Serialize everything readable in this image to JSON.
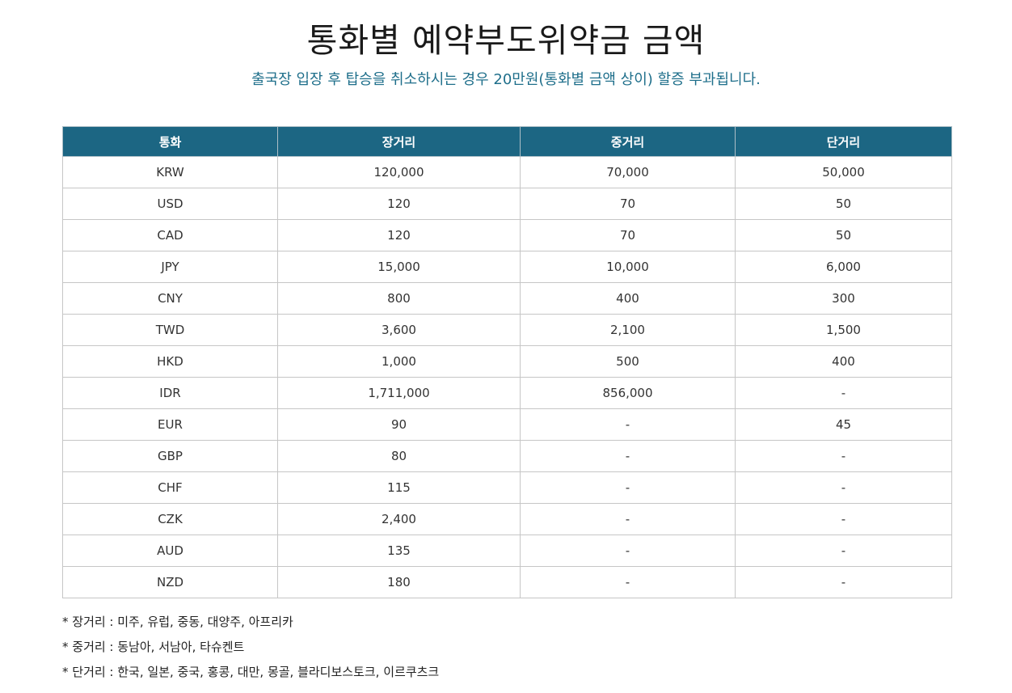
{
  "header": {
    "title": "통화별 예약부도위약금 금액",
    "subtitle": "출국장 입장 후 탑승을 취소하시는 경우 20만원(통화별 금액 상이) 할증 부과됩니다."
  },
  "table": {
    "columns": [
      "통화",
      "장거리",
      "중거리",
      "단거리"
    ],
    "rows": [
      [
        "KRW",
        "120,000",
        "70,000",
        "50,000"
      ],
      [
        "USD",
        "120",
        "70",
        "50"
      ],
      [
        "CAD",
        "120",
        "70",
        "50"
      ],
      [
        "JPY",
        "15,000",
        "10,000",
        "6,000"
      ],
      [
        "CNY",
        "800",
        "400",
        "300"
      ],
      [
        "TWD",
        "3,600",
        "2,100",
        "1,500"
      ],
      [
        "HKD",
        "1,000",
        "500",
        "400"
      ],
      [
        "IDR",
        "1,711,000",
        "856,000",
        "-"
      ],
      [
        "EUR",
        "90",
        "-",
        "45"
      ],
      [
        "GBP",
        "80",
        "-",
        "-"
      ],
      [
        "CHF",
        "115",
        "-",
        "-"
      ],
      [
        "CZK",
        "2,400",
        "-",
        "-"
      ],
      [
        "AUD",
        "135",
        "-",
        "-"
      ],
      [
        "NZD",
        "180",
        "-",
        "-"
      ]
    ]
  },
  "notes": [
    "* 장거리 : 미주, 유럽, 중동, 대양주, 아프리카",
    "* 중거리 : 동남아, 서남아, 타슈켄트",
    "* 단거리 : 한국, 일본, 중국, 홍콩, 대만, 몽골, 블라디보스토크, 이르쿠츠크"
  ],
  "colors": {
    "header_bg": "#1c6683",
    "subtitle_text": "#1f6f8b"
  }
}
